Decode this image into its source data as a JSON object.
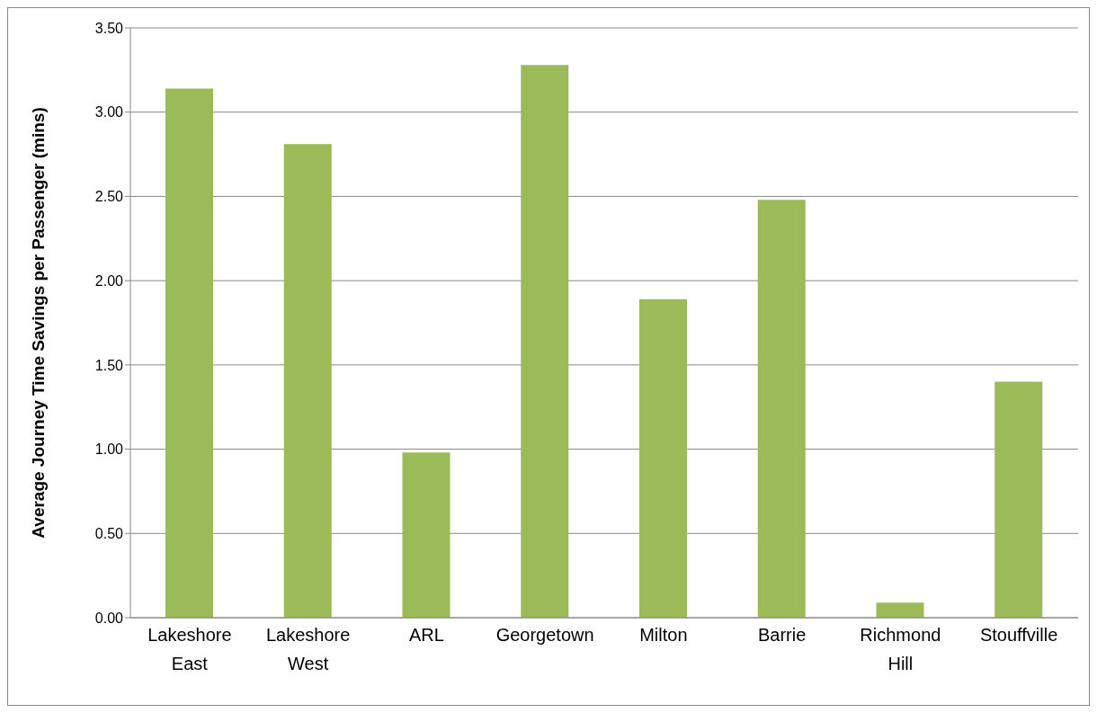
{
  "chart_data": {
    "type": "bar",
    "ylabel": "Average Journey Time Savings per Passenger (mins)",
    "categories": [
      "Lakeshore East",
      "Lakeshore West",
      "ARL",
      "Georgetown",
      "Milton",
      "Barrie",
      "Richmond Hill",
      "Stouffville"
    ],
    "values": [
      3.14,
      2.81,
      0.98,
      3.28,
      1.89,
      2.48,
      0.09,
      1.4
    ],
    "color": "#9bbb59",
    "ylim": [
      0,
      3.5
    ],
    "yticks": [
      {
        "value": 0,
        "label": "0.00"
      },
      {
        "value": 0.5,
        "label": "0.50"
      },
      {
        "value": 1,
        "label": "1.00"
      },
      {
        "value": 1.5,
        "label": "1.50"
      },
      {
        "value": 2,
        "label": "2.00"
      },
      {
        "value": 2.5,
        "label": "2.50"
      },
      {
        "value": 3,
        "label": "3.00"
      },
      {
        "value": 3.5,
        "label": "3.50"
      }
    ],
    "grid": "y",
    "legend": false
  }
}
